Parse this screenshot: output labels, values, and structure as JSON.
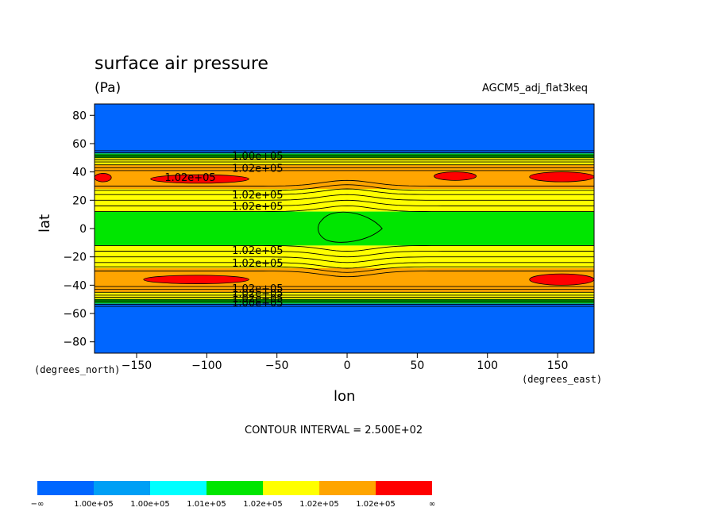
{
  "chart_data": {
    "type": "contour",
    "title": "surface air pressure",
    "units": "(Pa)",
    "run_name": "AGCM5_adj_flat3keq",
    "xlabel": "lon",
    "ylabel": "lat",
    "x_unit_label": "(degrees_east)",
    "y_unit_label": "(degrees_north)",
    "xlim": [
      -180,
      176
    ],
    "ylim": [
      -88,
      88
    ],
    "x_ticks": [
      -150,
      -100,
      -50,
      0,
      50,
      100,
      150
    ],
    "x_tick_labels": [
      "−150",
      "−100",
      "−50",
      "0",
      "50",
      "100",
      "150"
    ],
    "y_ticks": [
      80,
      60,
      40,
      20,
      0,
      -20,
      -40,
      -60,
      -80
    ],
    "y_tick_labels": [
      "80",
      "60",
      "40",
      "20",
      "0",
      "−20",
      "−40",
      "−60",
      "−80"
    ],
    "contour_interval_text": "CONTOUR INTERVAL = 2.500E+02",
    "contour_interval": 250,
    "contour_labels": [
      "1.00e+05",
      "1.02e+05",
      "1.02e+05",
      "1.02e+05",
      "1.02e+05",
      "1.02e+05",
      "1.02e+05",
      "1.02e+05",
      "1.02e+05",
      "1.02e+05",
      "1.00e+05"
    ],
    "colorbar": {
      "colors": [
        "#0066ff",
        "#009ff5",
        "#00ffff",
        "#00e600",
        "#ffff00",
        "#ffa500",
        "#ff0000"
      ],
      "labels": [
        "−∞",
        "1.00e+05",
        "1.00e+05",
        "1.01e+05",
        "1.02e+05",
        "1.02e+05",
        "1.02e+05",
        "∞"
      ]
    },
    "zonal_bands": [
      {
        "lat_min": 53,
        "lat_max": 88,
        "level": 0
      },
      {
        "lat_min": 50,
        "lat_max": 53,
        "level": 3
      },
      {
        "lat_min": 45,
        "lat_max": 50,
        "level": 4
      },
      {
        "lat_min": 28,
        "lat_max": 45,
        "level": 5
      },
      {
        "lat_min": 12,
        "lat_max": 28,
        "level": 4
      },
      {
        "lat_min": -12,
        "lat_max": 12,
        "level": 3
      },
      {
        "lat_min": -28,
        "lat_max": -12,
        "level": 4
      },
      {
        "lat_min": -45,
        "lat_max": -28,
        "level": 5
      },
      {
        "lat_min": -50,
        "lat_max": -45,
        "level": 4
      },
      {
        "lat_min": -53,
        "lat_max": -50,
        "level": 3
      },
      {
        "lat_min": -88,
        "lat_max": -53,
        "level": 0
      }
    ],
    "high_centers": [
      {
        "lon_min": -180,
        "lon_max": -168,
        "lat_min": 33,
        "lat_max": 39
      },
      {
        "lon_min": -140,
        "lon_max": -70,
        "lat_min": 32,
        "lat_max": 38
      },
      {
        "lon_min": 62,
        "lon_max": 92,
        "lat_min": 34,
        "lat_max": 40
      },
      {
        "lon_min": 130,
        "lon_max": 176,
        "lat_min": 33,
        "lat_max": 40
      },
      {
        "lon_min": -145,
        "lon_max": -70,
        "lat_min": -39,
        "lat_max": -33
      },
      {
        "lon_min": 130,
        "lon_max": 176,
        "lat_min": -40,
        "lat_max": -32
      }
    ]
  }
}
